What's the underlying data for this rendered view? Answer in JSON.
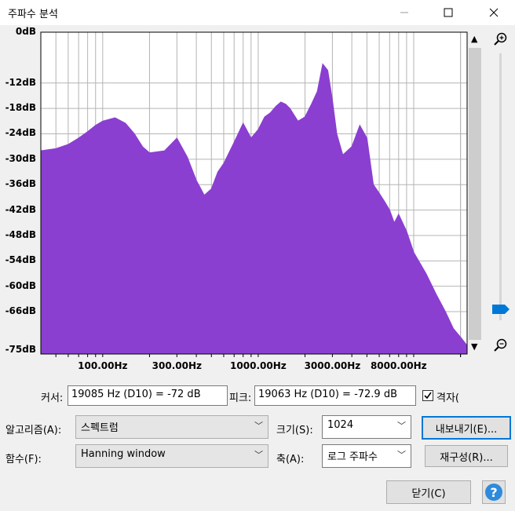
{
  "window": {
    "title": "주파수 분석"
  },
  "colors": {
    "spectrum": "#8a3fd1",
    "plot_bg": "#ffffff",
    "grid": "#b4b4b4",
    "slider_thumb": "#0078d7",
    "help": "#2e8bdc"
  },
  "icons": {
    "zoom_in": "zoom-in-icon",
    "zoom_out": "zoom-out-icon",
    "help": "help-icon",
    "checkbox": "checkbox-checked-icon"
  },
  "chart_data": {
    "type": "area",
    "y_axis": {
      "unit": "dB",
      "ylim": [
        -76,
        0
      ],
      "ticks": [
        "0dB",
        "-12dB",
        "-18dB",
        "-24dB",
        "-30dB",
        "-36dB",
        "-42dB",
        "-48dB",
        "-54dB",
        "-60dB",
        "-66dB",
        "-75dB"
      ]
    },
    "x_axis": {
      "scale": "log",
      "xlim": [
        40,
        22050
      ],
      "ticks": [
        "100.00Hz",
        "300.00Hz",
        "1000.00Hz",
        "3000.00Hz",
        "8000.00Hz"
      ]
    },
    "grid": true,
    "x": [
      40,
      50,
      60,
      70,
      80,
      90,
      100,
      120,
      140,
      160,
      180,
      200,
      250,
      300,
      350,
      400,
      450,
      500,
      550,
      600,
      700,
      800,
      900,
      1000,
      1100,
      1200,
      1300,
      1400,
      1500,
      1600,
      1800,
      2000,
      2200,
      2400,
      2600,
      2800,
      3000,
      3200,
      3500,
      4000,
      4500,
      5000,
      5500,
      6000,
      6500,
      7000,
      7500,
      8000,
      9000,
      10000,
      12000,
      14000,
      16000,
      18000,
      20000,
      22050
    ],
    "y": [
      -28,
      -27.5,
      -26.5,
      -25,
      -23.5,
      -22,
      -21,
      -20.2,
      -21.5,
      -24,
      -27,
      -28.5,
      -28,
      -25,
      -29.5,
      -35,
      -38.5,
      -37,
      -33,
      -31,
      -26,
      -21.5,
      -25,
      -23,
      -20,
      -19,
      -17.5,
      -16.5,
      -17,
      -18,
      -21,
      -20,
      -17,
      -14,
      -7.5,
      -9,
      -16,
      -24,
      -29,
      -27,
      -22,
      -25,
      -36,
      -38,
      -40,
      -42,
      -45,
      -43,
      -47,
      -52,
      -57,
      -62,
      -66,
      -70,
      -72,
      -74
    ]
  },
  "cursor": {
    "label": "커서:",
    "value": "19085 Hz (D10) = -72 dB"
  },
  "peak": {
    "label": "피크:",
    "value": "19063 Hz (D10) = -72.9 dB"
  },
  "grid_checkbox": {
    "label": "격자(",
    "checked": true
  },
  "algorithm": {
    "label": "알고리즘(A):",
    "value": "스펙트럼"
  },
  "size": {
    "label": "크기(S):",
    "value": "1024"
  },
  "function": {
    "label": "함수(F):",
    "value": "Hanning window"
  },
  "axis": {
    "label": "축(A):",
    "value": "로그 주파수"
  },
  "buttons": {
    "export": "내보내기(E)...",
    "replot": "재구성(R)...",
    "close": "닫기(C)",
    "help": "?"
  },
  "slider": {
    "level": 0.96
  }
}
